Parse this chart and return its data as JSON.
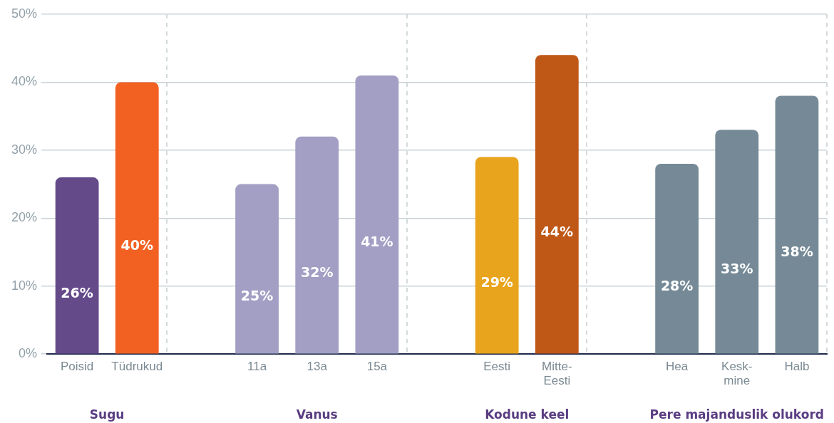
{
  "chart_data": {
    "type": "bar",
    "categories": [
      "Poisid",
      "Tüdrukud",
      null,
      "11a",
      "13a",
      "15a",
      null,
      "Eesti",
      "Mitte-Eesti",
      null,
      "Hea",
      "Kesk-mine",
      "Halb"
    ],
    "values": [
      26,
      40,
      null,
      25,
      32,
      41,
      null,
      29,
      44,
      null,
      28,
      33,
      38
    ],
    "colors": [
      "#654a8a",
      "#f26122",
      null,
      "#a29ec4",
      "#a29ec4",
      "#a29ec4",
      null,
      "#e8a41c",
      "#bf5717",
      null,
      "#758a96",
      "#758a96",
      "#758a96"
    ],
    "ylim": [
      0,
      50
    ],
    "yticks": [
      {
        "value": 0,
        "label": "0%"
      },
      {
        "value": 10,
        "label": "10%"
      },
      {
        "value": 20,
        "label": "20%"
      },
      {
        "value": 30,
        "label": "30%"
      },
      {
        "value": 40,
        "label": "40%"
      },
      {
        "value": 50,
        "label": "50%"
      }
    ],
    "value_labels": [
      "26%",
      "40%",
      null,
      "25%",
      "32%",
      "41%",
      null,
      "29%",
      "44%",
      null,
      "28%",
      "33%",
      "38%"
    ],
    "grid": true,
    "legend": false,
    "annotations": [
      "Sugu",
      "Vanus",
      "Kodune keel",
      "Pere majanduslik olukord"
    ]
  }
}
